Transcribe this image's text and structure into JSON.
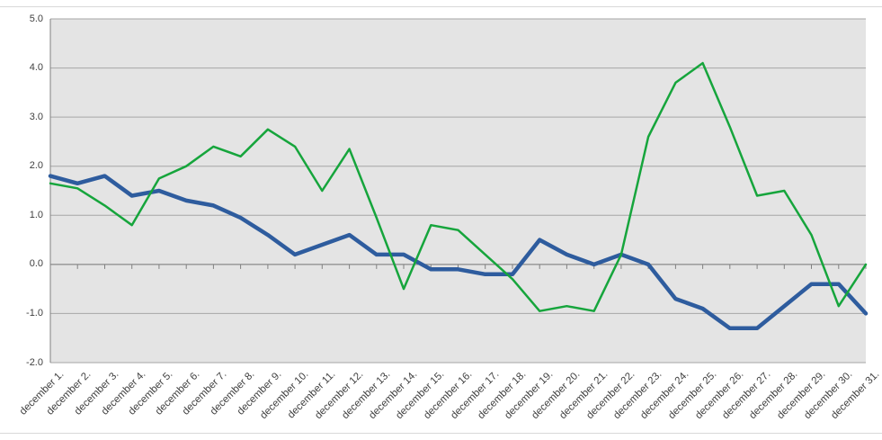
{
  "chart_data": {
    "type": "line",
    "categories": [
      "december 1.",
      "december 2.",
      "december 3.",
      "december 4.",
      "december 5.",
      "december 6.",
      "december 7.",
      "december 8.",
      "december 9.",
      "december 10.",
      "december 11.",
      "december 12.",
      "december 13.",
      "december 14.",
      "december 15.",
      "december 16.",
      "december 17.",
      "december 18.",
      "december 19.",
      "december 20.",
      "december 21.",
      "december 22.",
      "december 23.",
      "december 24.",
      "december 25.",
      "december 26.",
      "december 27.",
      "december 28.",
      "december 29.",
      "december 30.",
      "december 31."
    ],
    "series": [
      {
        "id": "blue-series",
        "color": "#2e5c9e",
        "stroke_width": 4.5,
        "values": [
          1.8,
          1.65,
          1.8,
          1.4,
          1.5,
          1.3,
          1.2,
          0.95,
          0.6,
          0.2,
          0.4,
          0.6,
          0.2,
          0.2,
          -0.1,
          -0.1,
          -0.2,
          -0.2,
          0.5,
          0.2,
          0.0,
          0.2,
          0.0,
          -0.7,
          -0.9,
          -1.3,
          -1.3,
          -0.85,
          -0.4,
          -0.4,
          -1.0
        ]
      },
      {
        "id": "green-series",
        "color": "#16a53c",
        "stroke_width": 2.5,
        "values": [
          1.65,
          1.55,
          1.2,
          0.8,
          1.75,
          2.0,
          2.4,
          2.2,
          2.75,
          2.4,
          1.5,
          2.35,
          0.95,
          -0.5,
          0.8,
          0.7,
          0.2,
          -0.3,
          -0.95,
          -0.85,
          -0.95,
          0.2,
          2.6,
          3.7,
          4.1,
          2.8,
          1.4,
          1.5,
          0.6,
          -0.85,
          0.0
        ]
      }
    ],
    "ylim": [
      -2.0,
      5.0
    ],
    "ytick_labels": [
      "5.0",
      "4.0",
      "3.0",
      "2.0",
      "1.0",
      "0.0",
      "-1.0",
      "-2.0"
    ],
    "ytick_values": [
      5,
      4,
      3,
      2,
      1,
      0,
      -1,
      -2
    ],
    "grid": true,
    "legend": "none",
    "x_axis_at_value": 0,
    "colors": {
      "plot_background": "#e4e4e4",
      "gridline": "#a6a6a6",
      "axis": "#808080",
      "tick": "#808080",
      "label": "#3f3f3f",
      "chart_border": "#d9d9d9"
    }
  }
}
